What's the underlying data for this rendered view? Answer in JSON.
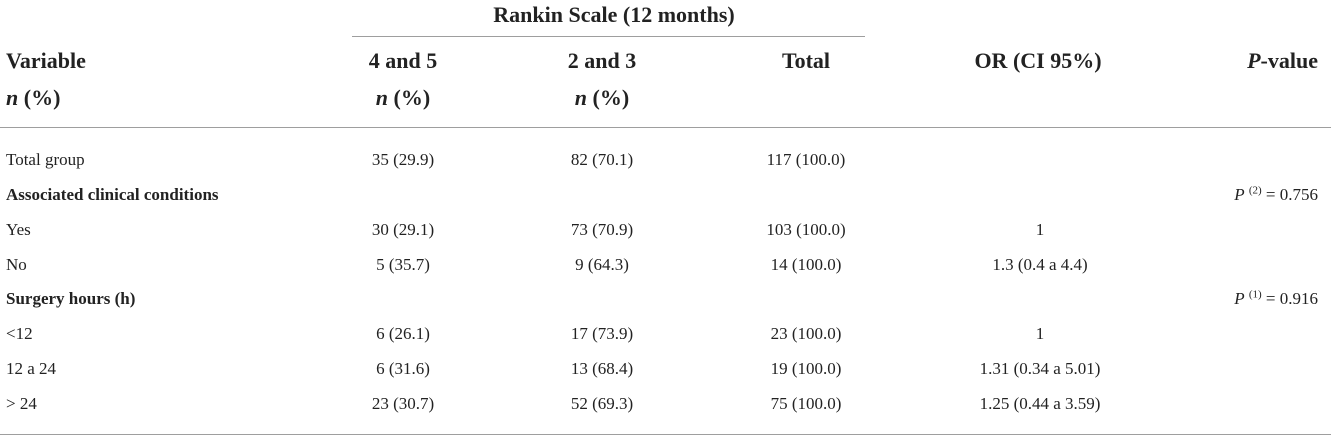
{
  "header": {
    "group_title": "Rankin Scale (12 months)",
    "variable": "Variable",
    "n_pct_italic": "n",
    "n_pct_rest": " (%)",
    "col_45": "4 and 5",
    "col_23": "2 and 3",
    "col_total": "Total",
    "col_or": "OR (CI 95%)",
    "col_p_italic": "P",
    "col_p_rest": "-value"
  },
  "rows": {
    "total_group": {
      "label": "Total group",
      "c45": "35 (29.9)",
      "c23": "82 (70.1)",
      "total": "117 (100.0)"
    },
    "assoc": {
      "label": "Associated clinical conditions",
      "p_letter": "P",
      "p_sup": "(2)",
      "p_value": " = 0.756"
    },
    "yes": {
      "label": "Yes",
      "c45": "30 (29.1)",
      "c23": "73 (70.9)",
      "total": "103 (100.0)",
      "or": "1"
    },
    "no": {
      "label": "No",
      "c45": "5 (35.7)",
      "c23": "9 (64.3)",
      "total": "14 (100.0)",
      "or": "1.3 (0.4 a 4.4)"
    },
    "surgery": {
      "label": "Surgery hours (h)",
      "p_letter": "P",
      "p_sup": "(1)",
      "p_value": " = 0.916"
    },
    "lt12": {
      "label": "<12",
      "c45": "6 (26.1)",
      "c23": "17 (73.9)",
      "total": "23 (100.0)",
      "or": "1"
    },
    "r12_24": {
      "label": "12 a 24",
      "c45": "6 (31.6)",
      "c23": "13 (68.4)",
      "total": "19 (100.0)",
      "or": "1.31 (0.34 a 5.01)"
    },
    "gt24": {
      "label": "> 24",
      "c45": "23 (30.7)",
      "c23": "52 (69.3)",
      "total": "75 (100.0)",
      "or": "1.25 (0.44 a 3.59)"
    }
  }
}
